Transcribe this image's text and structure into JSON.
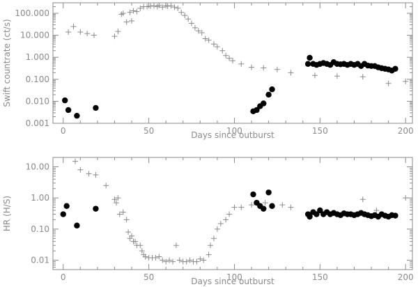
{
  "chart_data": [
    {
      "type": "scatter",
      "xlabel": "Days since outburst",
      "ylabel": "Swift countrate (ct/s)",
      "xlim": [
        -6,
        204
      ],
      "ylim": [
        0.001,
        300
      ],
      "yscale": "log",
      "x_ticks": [
        0,
        50,
        100,
        150,
        200
      ],
      "x_tick_labels": [
        "0",
        "50",
        "100",
        "150",
        "200"
      ],
      "y_ticks": [
        0.001,
        0.01,
        0.1,
        1,
        10,
        100
      ],
      "y_tick_labels": [
        "0.001",
        "0.010",
        "0.100",
        "1.000",
        "10.000",
        "100.000"
      ],
      "grid": false,
      "series": [
        {
          "marker": "plus",
          "color": "#8a8a8a",
          "points": [
            [
              3,
              14
            ],
            [
              6,
              25
            ],
            [
              10,
              14
            ],
            [
              14,
              12
            ],
            [
              18,
              10
            ],
            [
              30,
              9
            ],
            [
              32,
              15
            ],
            [
              34,
              90
            ],
            [
              35,
              100
            ],
            [
              37,
              40
            ],
            [
              39,
              110
            ],
            [
              40,
              45
            ],
            [
              41,
              130
            ],
            [
              43,
              120
            ],
            [
              45,
              170
            ],
            [
              47,
              200
            ],
            [
              49,
              200
            ],
            [
              51,
              210
            ],
            [
              53,
              220
            ],
            [
              55,
              200
            ],
            [
              56,
              230
            ],
            [
              58,
              190
            ],
            [
              60,
              220
            ],
            [
              61,
              210
            ],
            [
              63,
              220
            ],
            [
              65,
              190
            ],
            [
              67,
              170
            ],
            [
              69,
              110
            ],
            [
              71,
              80
            ],
            [
              73,
              55
            ],
            [
              75,
              35
            ],
            [
              77,
              22
            ],
            [
              79,
              16
            ],
            [
              81,
              13
            ],
            [
              83,
              7
            ],
            [
              85,
              6
            ],
            [
              88,
              4
            ],
            [
              90,
              3
            ],
            [
              93,
              2
            ],
            [
              95,
              1.2
            ],
            [
              97,
              0.9
            ],
            [
              99,
              0.7
            ],
            [
              104,
              0.5
            ],
            [
              110,
              0.35
            ],
            [
              117,
              0.33
            ],
            [
              125,
              0.28
            ],
            [
              133,
              0.2
            ],
            [
              147,
              0.15
            ],
            [
              160,
              0.14
            ],
            [
              175,
              0.13
            ],
            [
              190,
              0.065
            ],
            [
              200,
              0.08
            ]
          ]
        },
        {
          "marker": "filled-circle",
          "color": "#000000",
          "points": [
            [
              1,
              0.011
            ],
            [
              3,
              0.004
            ],
            [
              8,
              0.0022
            ],
            [
              19,
              0.005
            ],
            [
              111,
              0.0035
            ],
            [
              113,
              0.004
            ],
            [
              115,
              0.006
            ],
            [
              117,
              0.008
            ],
            [
              120,
              0.02
            ],
            [
              122,
              0.035
            ],
            [
              143,
              0.5
            ],
            [
              144,
              0.95
            ],
            [
              146,
              0.5
            ],
            [
              148,
              0.45
            ],
            [
              150,
              0.5
            ],
            [
              152,
              0.55
            ],
            [
              154,
              0.5
            ],
            [
              156,
              0.45
            ],
            [
              158,
              0.6
            ],
            [
              160,
              0.5
            ],
            [
              162,
              0.48
            ],
            [
              164,
              0.5
            ],
            [
              166,
              0.45
            ],
            [
              168,
              0.5
            ],
            [
              170,
              0.45
            ],
            [
              172,
              0.5
            ],
            [
              174,
              0.4
            ],
            [
              176,
              0.5
            ],
            [
              178,
              0.42
            ],
            [
              180,
              0.4
            ],
            [
              182,
              0.4
            ],
            [
              184,
              0.35
            ],
            [
              186,
              0.32
            ],
            [
              188,
              0.3
            ],
            [
              190,
              0.28
            ],
            [
              192,
              0.25
            ],
            [
              194,
              0.3
            ]
          ]
        }
      ]
    },
    {
      "type": "scatter",
      "xlabel": "Days since outburst",
      "ylabel": "HR (H/S)",
      "xlim": [
        -6,
        204
      ],
      "ylim": [
        0.005,
        20
      ],
      "yscale": "log",
      "x_ticks": [
        0,
        50,
        100,
        150,
        200
      ],
      "x_tick_labels": [
        "0",
        "50",
        "100",
        "150",
        "200"
      ],
      "y_ticks": [
        0.01,
        0.1,
        1,
        10
      ],
      "y_tick_labels": [
        "0.01",
        "0.10",
        "1.00",
        "10.00"
      ],
      "grid": false,
      "series": [
        {
          "marker": "plus",
          "color": "#8a8a8a",
          "points": [
            [
              7,
              15
            ],
            [
              10,
              8
            ],
            [
              15,
              6
            ],
            [
              19,
              5.5
            ],
            [
              25,
              2.5
            ],
            [
              30,
              0.9
            ],
            [
              31,
              0.7
            ],
            [
              32,
              1.0
            ],
            [
              33,
              0.3
            ],
            [
              35,
              0.35
            ],
            [
              37,
              0.2
            ],
            [
              38,
              0.08
            ],
            [
              39,
              0.05
            ],
            [
              40,
              0.06
            ],
            [
              41,
              0.04
            ],
            [
              42,
              0.04
            ],
            [
              43,
              0.03
            ],
            [
              45,
              0.03
            ],
            [
              46,
              0.02
            ],
            [
              47,
              0.015
            ],
            [
              48,
              0.013
            ],
            [
              50,
              0.012
            ],
            [
              52,
              0.012
            ],
            [
              54,
              0.012
            ],
            [
              56,
              0.013
            ],
            [
              58,
              0.01
            ],
            [
              60,
              0.009
            ],
            [
              62,
              0.01
            ],
            [
              64,
              0.009
            ],
            [
              66,
              0.03
            ],
            [
              68,
              0.01
            ],
            [
              70,
              0.009
            ],
            [
              72,
              0.009
            ],
            [
              74,
              0.01
            ],
            [
              76,
              0.009
            ],
            [
              78,
              0.009
            ],
            [
              80,
              0.011
            ],
            [
              82,
              0.01
            ],
            [
              85,
              0.015
            ],
            [
              86,
              0.03
            ],
            [
              88,
              0.05
            ],
            [
              90,
              0.1
            ],
            [
              92,
              0.15
            ],
            [
              95,
              0.2
            ],
            [
              97,
              0.3
            ],
            [
              100,
              0.5
            ],
            [
              104,
              0.5
            ],
            [
              110,
              0.6
            ],
            [
              118,
              0.7
            ],
            [
              128,
              0.6
            ],
            [
              133,
              0.5
            ],
            [
              145,
              0.3
            ],
            [
              175,
              0.9
            ],
            [
              183,
              0.4
            ],
            [
              200,
              1.0
            ]
          ]
        },
        {
          "marker": "filled-circle",
          "color": "#000000",
          "points": [
            [
              0,
              0.3
            ],
            [
              2,
              0.55
            ],
            [
              8,
              0.13
            ],
            [
              19,
              0.45
            ],
            [
              111,
              1.3
            ],
            [
              113,
              0.7
            ],
            [
              115,
              0.55
            ],
            [
              117,
              0.45
            ],
            [
              120,
              1.5
            ],
            [
              122,
              0.55
            ],
            [
              143,
              0.3
            ],
            [
              144,
              0.25
            ],
            [
              146,
              0.35
            ],
            [
              148,
              0.3
            ],
            [
              150,
              0.4
            ],
            [
              152,
              0.3
            ],
            [
              154,
              0.35
            ],
            [
              156,
              0.3
            ],
            [
              158,
              0.33
            ],
            [
              160,
              0.3
            ],
            [
              162,
              0.28
            ],
            [
              164,
              0.32
            ],
            [
              166,
              0.3
            ],
            [
              168,
              0.3
            ],
            [
              170,
              0.28
            ],
            [
              172,
              0.3
            ],
            [
              174,
              0.33
            ],
            [
              176,
              0.3
            ],
            [
              178,
              0.28
            ],
            [
              180,
              0.26
            ],
            [
              182,
              0.28
            ],
            [
              184,
              0.25
            ],
            [
              186,
              0.3
            ],
            [
              188,
              0.27
            ],
            [
              190,
              0.25
            ],
            [
              192,
              0.28
            ],
            [
              194,
              0.27
            ]
          ]
        }
      ]
    }
  ]
}
